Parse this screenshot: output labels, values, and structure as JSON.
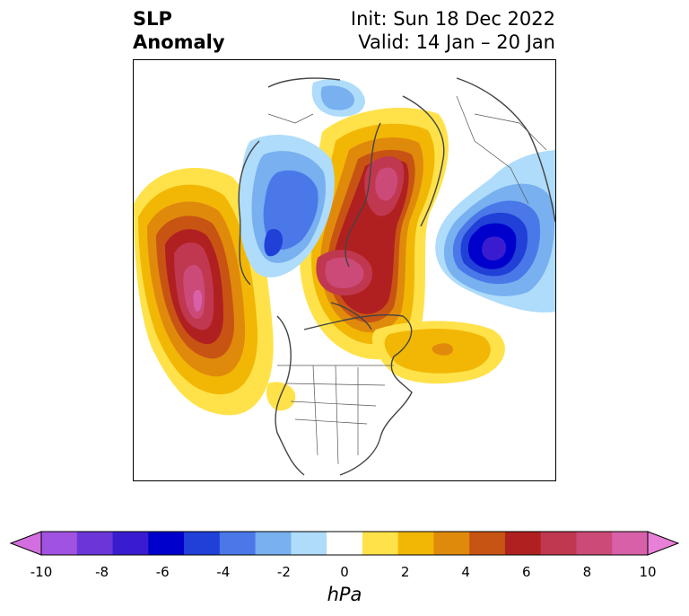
{
  "title": {
    "left_line1": "SLP",
    "left_line2": "Anomaly",
    "right_line1": "Init: Sun 18 Dec 2022",
    "right_line2": "Valid: 14 Jan – 20 Jan"
  },
  "colorbar": {
    "units": "hPa",
    "ticks": [
      "-10",
      "-8",
      "-6",
      "-4",
      "-2",
      "0",
      "2",
      "4",
      "6",
      "8",
      "10"
    ],
    "colors": [
      "#d36ee0",
      "#a052e0",
      "#6a36d8",
      "#3a1cd0",
      "#0000cc",
      "#2040d8",
      "#4a78e8",
      "#78b0f0",
      "#aedcfa",
      "#ffffff",
      "#ffe24a",
      "#f2b705",
      "#e08a0c",
      "#c85414",
      "#b02020",
      "#c03850",
      "#cc4a78",
      "#d860a8",
      "#e880d8"
    ]
  }
}
